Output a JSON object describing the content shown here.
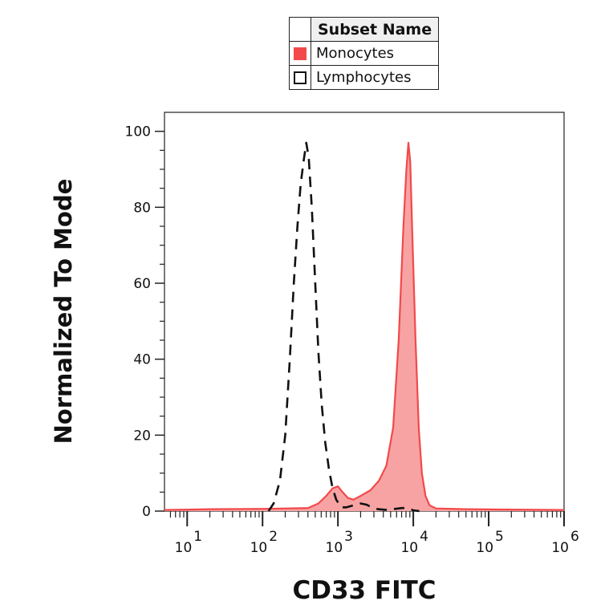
{
  "legend": {
    "header": "Subset Name",
    "items": [
      {
        "label": "Monocytes",
        "color": "#f2494a",
        "style": "filled"
      },
      {
        "label": "Lymphocytes",
        "color": "#111111",
        "style": "outline"
      }
    ]
  },
  "chart_data": {
    "type": "area",
    "xlabel": "CD33 FITC",
    "ylabel": "Normalized To Mode",
    "xscale": "log",
    "xlim": [
      5,
      1000000
    ],
    "ylim": [
      0,
      105
    ],
    "yticks": [
      0,
      20,
      40,
      60,
      80,
      100
    ],
    "xticks": [
      {
        "value": 10,
        "base": "10",
        "exp": "1"
      },
      {
        "value": 100,
        "base": "10",
        "exp": "2"
      },
      {
        "value": 1000,
        "base": "10",
        "exp": "3"
      },
      {
        "value": 10000,
        "base": "10",
        "exp": "4"
      },
      {
        "value": 100000,
        "base": "10",
        "exp": "5"
      },
      {
        "value": 1000000,
        "base": "10",
        "exp": "6"
      }
    ],
    "series": [
      {
        "name": "Monocytes",
        "style": "filled",
        "color": "#f2494a",
        "fill": "#f7a3a4",
        "points": [
          [
            5,
            0.3
          ],
          [
            20,
            0.5
          ],
          [
            100,
            0.6
          ],
          [
            400,
            0.8
          ],
          [
            550,
            2
          ],
          [
            700,
            4
          ],
          [
            850,
            6
          ],
          [
            1000,
            6.5
          ],
          [
            1150,
            5
          ],
          [
            1350,
            3.5
          ],
          [
            1600,
            3
          ],
          [
            2000,
            4
          ],
          [
            2700,
            5.5
          ],
          [
            3500,
            8
          ],
          [
            4400,
            12
          ],
          [
            5400,
            22
          ],
          [
            6400,
            45
          ],
          [
            7400,
            75
          ],
          [
            8100,
            90
          ],
          [
            8600,
            97
          ],
          [
            9100,
            92
          ],
          [
            9800,
            70
          ],
          [
            10700,
            45
          ],
          [
            11800,
            22
          ],
          [
            13000,
            10
          ],
          [
            14500,
            4
          ],
          [
            16500,
            1.5
          ],
          [
            20000,
            0.7
          ],
          [
            50000,
            0.5
          ],
          [
            200000,
            0.4
          ],
          [
            1000000,
            0.3
          ]
        ]
      },
      {
        "name": "Lymphocytes",
        "style": "dashed",
        "color": "#111111",
        "points": [
          [
            120,
            0
          ],
          [
            140,
            2
          ],
          [
            170,
            8
          ],
          [
            200,
            20
          ],
          [
            230,
            40
          ],
          [
            260,
            60
          ],
          [
            290,
            75
          ],
          [
            320,
            86
          ],
          [
            350,
            92
          ],
          [
            380,
            97
          ],
          [
            410,
            93
          ],
          [
            450,
            80
          ],
          [
            500,
            60
          ],
          [
            550,
            42
          ],
          [
            610,
            28
          ],
          [
            680,
            18
          ],
          [
            760,
            11
          ],
          [
            850,
            6
          ],
          [
            950,
            3
          ],
          [
            1100,
            1
          ],
          [
            1300,
            1
          ],
          [
            1600,
            1.5
          ],
          [
            2000,
            2
          ],
          [
            2400,
            1.7
          ],
          [
            2800,
            1
          ],
          [
            3400,
            0.5
          ],
          [
            4500,
            0.3
          ],
          [
            7000,
            0.8
          ],
          [
            8500,
            0.8
          ],
          [
            10000,
            0.2
          ],
          [
            12000,
            0
          ]
        ]
      }
    ]
  }
}
